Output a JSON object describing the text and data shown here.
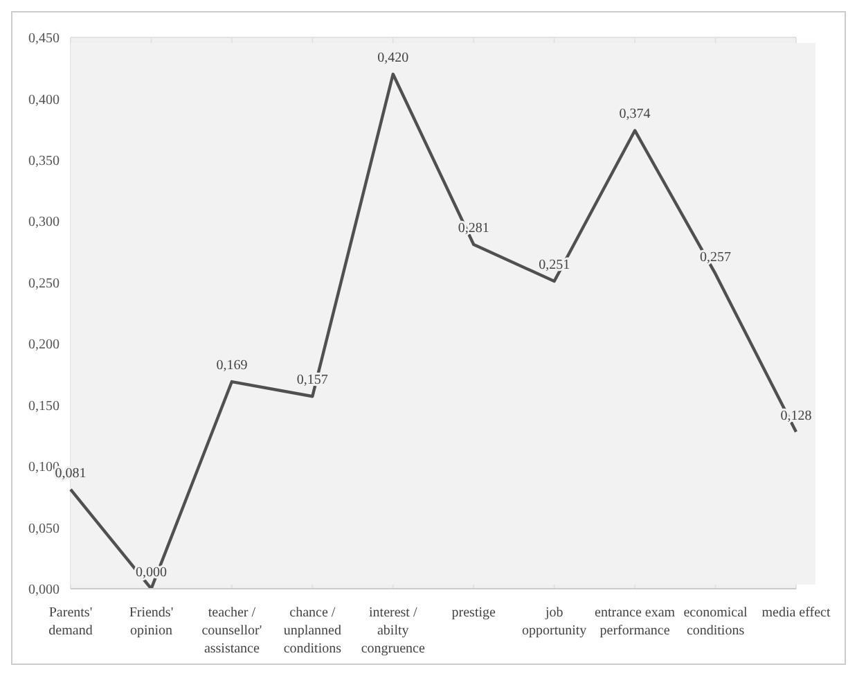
{
  "chart_data": {
    "type": "line",
    "categories": [
      "Parents' demand",
      "Friends' opinion",
      "teacher / counsellor' assistance",
      "chance / unplanned conditions",
      "interest / abilty congruence",
      "prestige",
      "job opportunity",
      "entrance exam performance",
      "economical conditions",
      "media effect"
    ],
    "series": [
      {
        "color": "#505050",
        "values": [
          0.081,
          0.0,
          0.169,
          0.157,
          0.42,
          0.281,
          0.251,
          0.374,
          0.257,
          0.128
        ],
        "value_labels": [
          "0,081",
          "0,000",
          "0,169",
          "0,157",
          "0,420",
          "0,281",
          "0,251",
          "0,374",
          "0,257",
          "0,128"
        ]
      }
    ],
    "ylim": [
      0,
      0.45
    ],
    "yticks": [
      {
        "value": 0,
        "label": "0,000"
      },
      {
        "value": 0.05,
        "label": "0,050"
      },
      {
        "value": 0.1,
        "label": "0,100"
      },
      {
        "value": 0.15,
        "label": "0,150"
      },
      {
        "value": 0.2,
        "label": "0,200"
      },
      {
        "value": 0.25,
        "label": "0,250"
      },
      {
        "value": 0.3,
        "label": "0,300"
      },
      {
        "value": 0.35,
        "label": "0,350"
      },
      {
        "value": 0.4,
        "label": "0,400"
      },
      {
        "value": 0.45,
        "label": "0,450"
      }
    ],
    "grid": true,
    "legend": false,
    "marker": "none",
    "line_style": "solid"
  }
}
